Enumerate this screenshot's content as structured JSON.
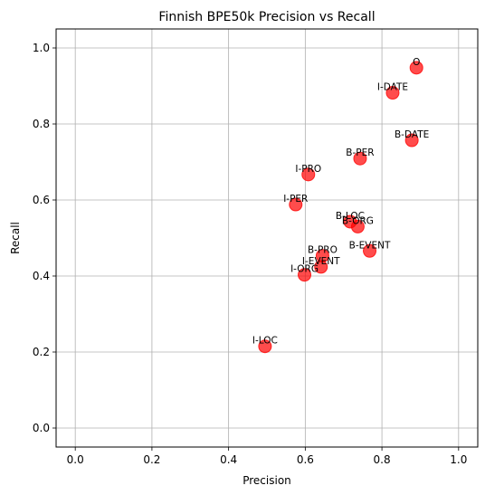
{
  "chart_data": {
    "type": "scatter",
    "title": "Finnish BPE50k Precision vs Recall",
    "xlabel": "Precision",
    "ylabel": "Recall",
    "xlim": [
      -0.05,
      1.05
    ],
    "ylim": [
      -0.05,
      1.05
    ],
    "xticks": [
      0.0,
      0.2,
      0.4,
      0.6,
      0.8,
      1.0
    ],
    "xtick_labels": [
      "0.0",
      "0.2",
      "0.4",
      "0.6",
      "0.8",
      "1.0"
    ],
    "yticks": [
      0.0,
      0.2,
      0.4,
      0.6,
      0.8,
      1.0
    ],
    "ytick_labels": [
      "0.0",
      "0.2",
      "0.4",
      "0.6",
      "0.8",
      "1.0"
    ],
    "grid": true,
    "marker_color": "#ff0000",
    "points": [
      {
        "label": "O",
        "x": 0.89,
        "y": 0.948
      },
      {
        "label": "I-DATE",
        "x": 0.828,
        "y": 0.882
      },
      {
        "label": "B-DATE",
        "x": 0.878,
        "y": 0.757
      },
      {
        "label": "B-PER",
        "x": 0.743,
        "y": 0.709
      },
      {
        "label": "I-PRO",
        "x": 0.608,
        "y": 0.667
      },
      {
        "label": "I-PER",
        "x": 0.575,
        "y": 0.588
      },
      {
        "label": "B-LOC",
        "x": 0.717,
        "y": 0.543
      },
      {
        "label": "B-ORG",
        "x": 0.737,
        "y": 0.53
      },
      {
        "label": "B-PRO",
        "x": 0.645,
        "y": 0.453
      },
      {
        "label": "B-EVENT",
        "x": 0.768,
        "y": 0.466
      },
      {
        "label": "I-EVENT",
        "x": 0.641,
        "y": 0.424
      },
      {
        "label": "I-ORG",
        "x": 0.598,
        "y": 0.403
      },
      {
        "label": "I-LOC",
        "x": 0.495,
        "y": 0.215
      }
    ]
  }
}
